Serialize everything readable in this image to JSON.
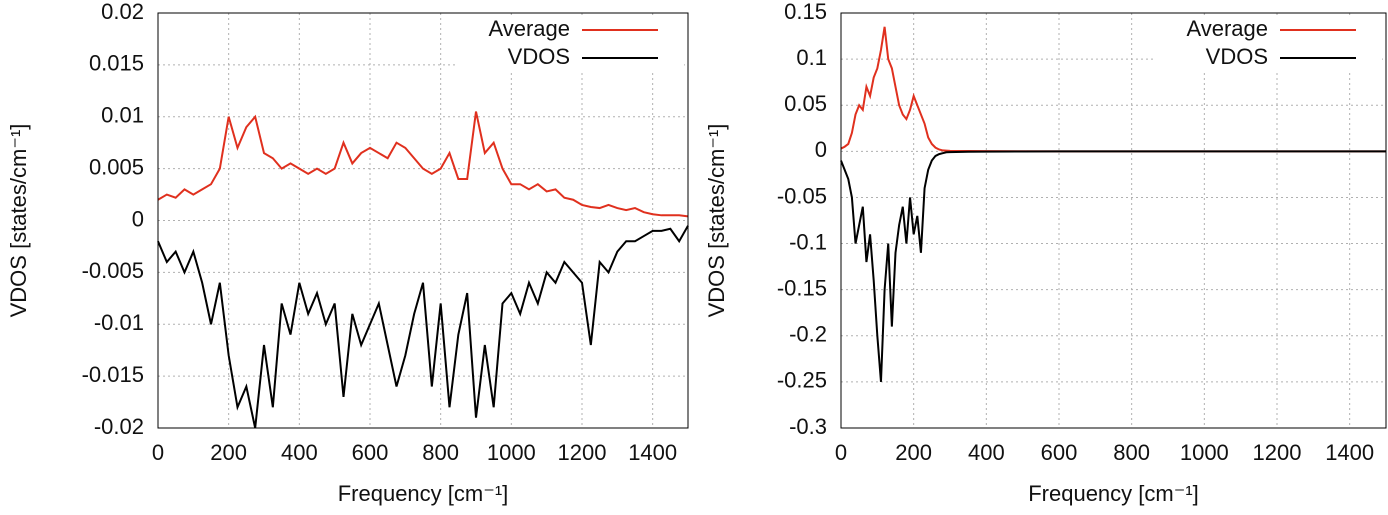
{
  "chart_data": [
    {
      "type": "line",
      "x_label": "Frequency [cm⁻¹]",
      "y_label": "VDOS [states/cm⁻¹]",
      "x": [
        0,
        25,
        50,
        75,
        100,
        125,
        150,
        175,
        200,
        225,
        250,
        275,
        300,
        325,
        350,
        375,
        400,
        425,
        450,
        475,
        500,
        525,
        550,
        575,
        600,
        625,
        650,
        675,
        700,
        725,
        750,
        775,
        800,
        825,
        850,
        875,
        900,
        925,
        950,
        975,
        1000,
        1025,
        1050,
        1075,
        1100,
        1125,
        1150,
        1175,
        1200,
        1225,
        1250,
        1275,
        1300,
        1325,
        1350,
        1375,
        1400,
        1425,
        1450,
        1475,
        1500
      ],
      "series": [
        {
          "name": "Average",
          "color": "#e0301e",
          "values": [
            0.002,
            0.0025,
            0.0022,
            0.003,
            0.0025,
            0.003,
            0.0035,
            0.005,
            0.01,
            0.007,
            0.009,
            0.01,
            0.0065,
            0.006,
            0.005,
            0.0055,
            0.005,
            0.0045,
            0.005,
            0.0045,
            0.005,
            0.0075,
            0.0055,
            0.0065,
            0.007,
            0.0065,
            0.006,
            0.0075,
            0.007,
            0.006,
            0.005,
            0.0045,
            0.005,
            0.0065,
            0.004,
            0.004,
            0.0105,
            0.0065,
            0.0075,
            0.005,
            0.0035,
            0.0035,
            0.003,
            0.0035,
            0.0028,
            0.003,
            0.0022,
            0.002,
            0.0015,
            0.0013,
            0.0012,
            0.0015,
            0.0012,
            0.001,
            0.0012,
            0.0008,
            0.0006,
            0.0005,
            0.0005,
            0.0005,
            0.0004
          ]
        },
        {
          "name": "VDOS",
          "color": "#000000",
          "values": [
            -0.002,
            -0.004,
            -0.003,
            -0.005,
            -0.003,
            -0.006,
            -0.01,
            -0.006,
            -0.013,
            -0.018,
            -0.016,
            -0.02,
            -0.012,
            -0.018,
            -0.008,
            -0.011,
            -0.006,
            -0.009,
            -0.007,
            -0.01,
            -0.008,
            -0.017,
            -0.009,
            -0.012,
            -0.01,
            -0.008,
            -0.012,
            -0.016,
            -0.013,
            -0.009,
            -0.006,
            -0.016,
            -0.008,
            -0.018,
            -0.011,
            -0.007,
            -0.019,
            -0.012,
            -0.018,
            -0.008,
            -0.007,
            -0.009,
            -0.006,
            -0.008,
            -0.005,
            -0.006,
            -0.004,
            -0.005,
            -0.006,
            -0.012,
            -0.004,
            -0.005,
            -0.003,
            -0.002,
            -0.002,
            -0.0015,
            -0.001,
            -0.001,
            -0.0008,
            -0.002,
            -0.0005
          ]
        }
      ],
      "xlim": [
        0,
        1500
      ],
      "xticks": [
        0,
        200,
        400,
        600,
        800,
        1000,
        1200,
        1400
      ],
      "ylim": [
        -0.02,
        0.02
      ],
      "yticks": [
        -0.02,
        -0.015,
        -0.01,
        -0.005,
        0,
        0.005,
        0.01,
        0.015,
        0.02
      ],
      "grid": true,
      "legend": "top-right"
    },
    {
      "type": "line",
      "x_label": "Frequency [cm⁻¹]",
      "y_label": "VDOS [states/cm⁻¹]",
      "x": [
        0,
        10,
        20,
        30,
        40,
        50,
        60,
        70,
        80,
        90,
        100,
        110,
        120,
        130,
        140,
        150,
        160,
        170,
        180,
        190,
        200,
        210,
        220,
        230,
        240,
        250,
        260,
        270,
        280,
        290,
        300,
        350,
        400,
        500,
        600,
        700,
        800,
        900,
        1000,
        1100,
        1200,
        1300,
        1400,
        1500
      ],
      "series": [
        {
          "name": "Average",
          "color": "#e0301e",
          "values": [
            0.003,
            0.005,
            0.008,
            0.02,
            0.04,
            0.05,
            0.045,
            0.07,
            0.06,
            0.08,
            0.09,
            0.11,
            0.135,
            0.1,
            0.09,
            0.07,
            0.05,
            0.04,
            0.035,
            0.045,
            0.06,
            0.05,
            0.04,
            0.03,
            0.015,
            0.008,
            0.004,
            0.002,
            0.001,
            0.0008,
            0.0005,
            0.0003,
            0.0002,
            0.0001,
            0,
            0,
            0,
            0,
            0,
            0,
            0,
            0,
            0,
            0
          ]
        },
        {
          "name": "VDOS",
          "color": "#000000",
          "values": [
            -0.01,
            -0.02,
            -0.03,
            -0.05,
            -0.1,
            -0.08,
            -0.06,
            -0.12,
            -0.09,
            -0.14,
            -0.2,
            -0.25,
            -0.15,
            -0.1,
            -0.19,
            -0.11,
            -0.08,
            -0.06,
            -0.1,
            -0.05,
            -0.09,
            -0.07,
            -0.11,
            -0.04,
            -0.02,
            -0.01,
            -0.005,
            -0.003,
            -0.002,
            -0.001,
            -0.0008,
            -0.0005,
            -0.0003,
            -0.0002,
            0,
            0,
            0,
            0,
            0,
            0,
            0,
            0,
            0,
            0
          ]
        }
      ],
      "xlim": [
        0,
        1500
      ],
      "xticks": [
        0,
        200,
        400,
        600,
        800,
        1000,
        1200,
        1400
      ],
      "ylim": [
        -0.3,
        0.15
      ],
      "yticks": [
        -0.3,
        -0.25,
        -0.2,
        -0.15,
        -0.1,
        -0.05,
        0,
        0.05,
        0.1,
        0.15
      ],
      "grid": true,
      "legend": "top-right"
    }
  ]
}
